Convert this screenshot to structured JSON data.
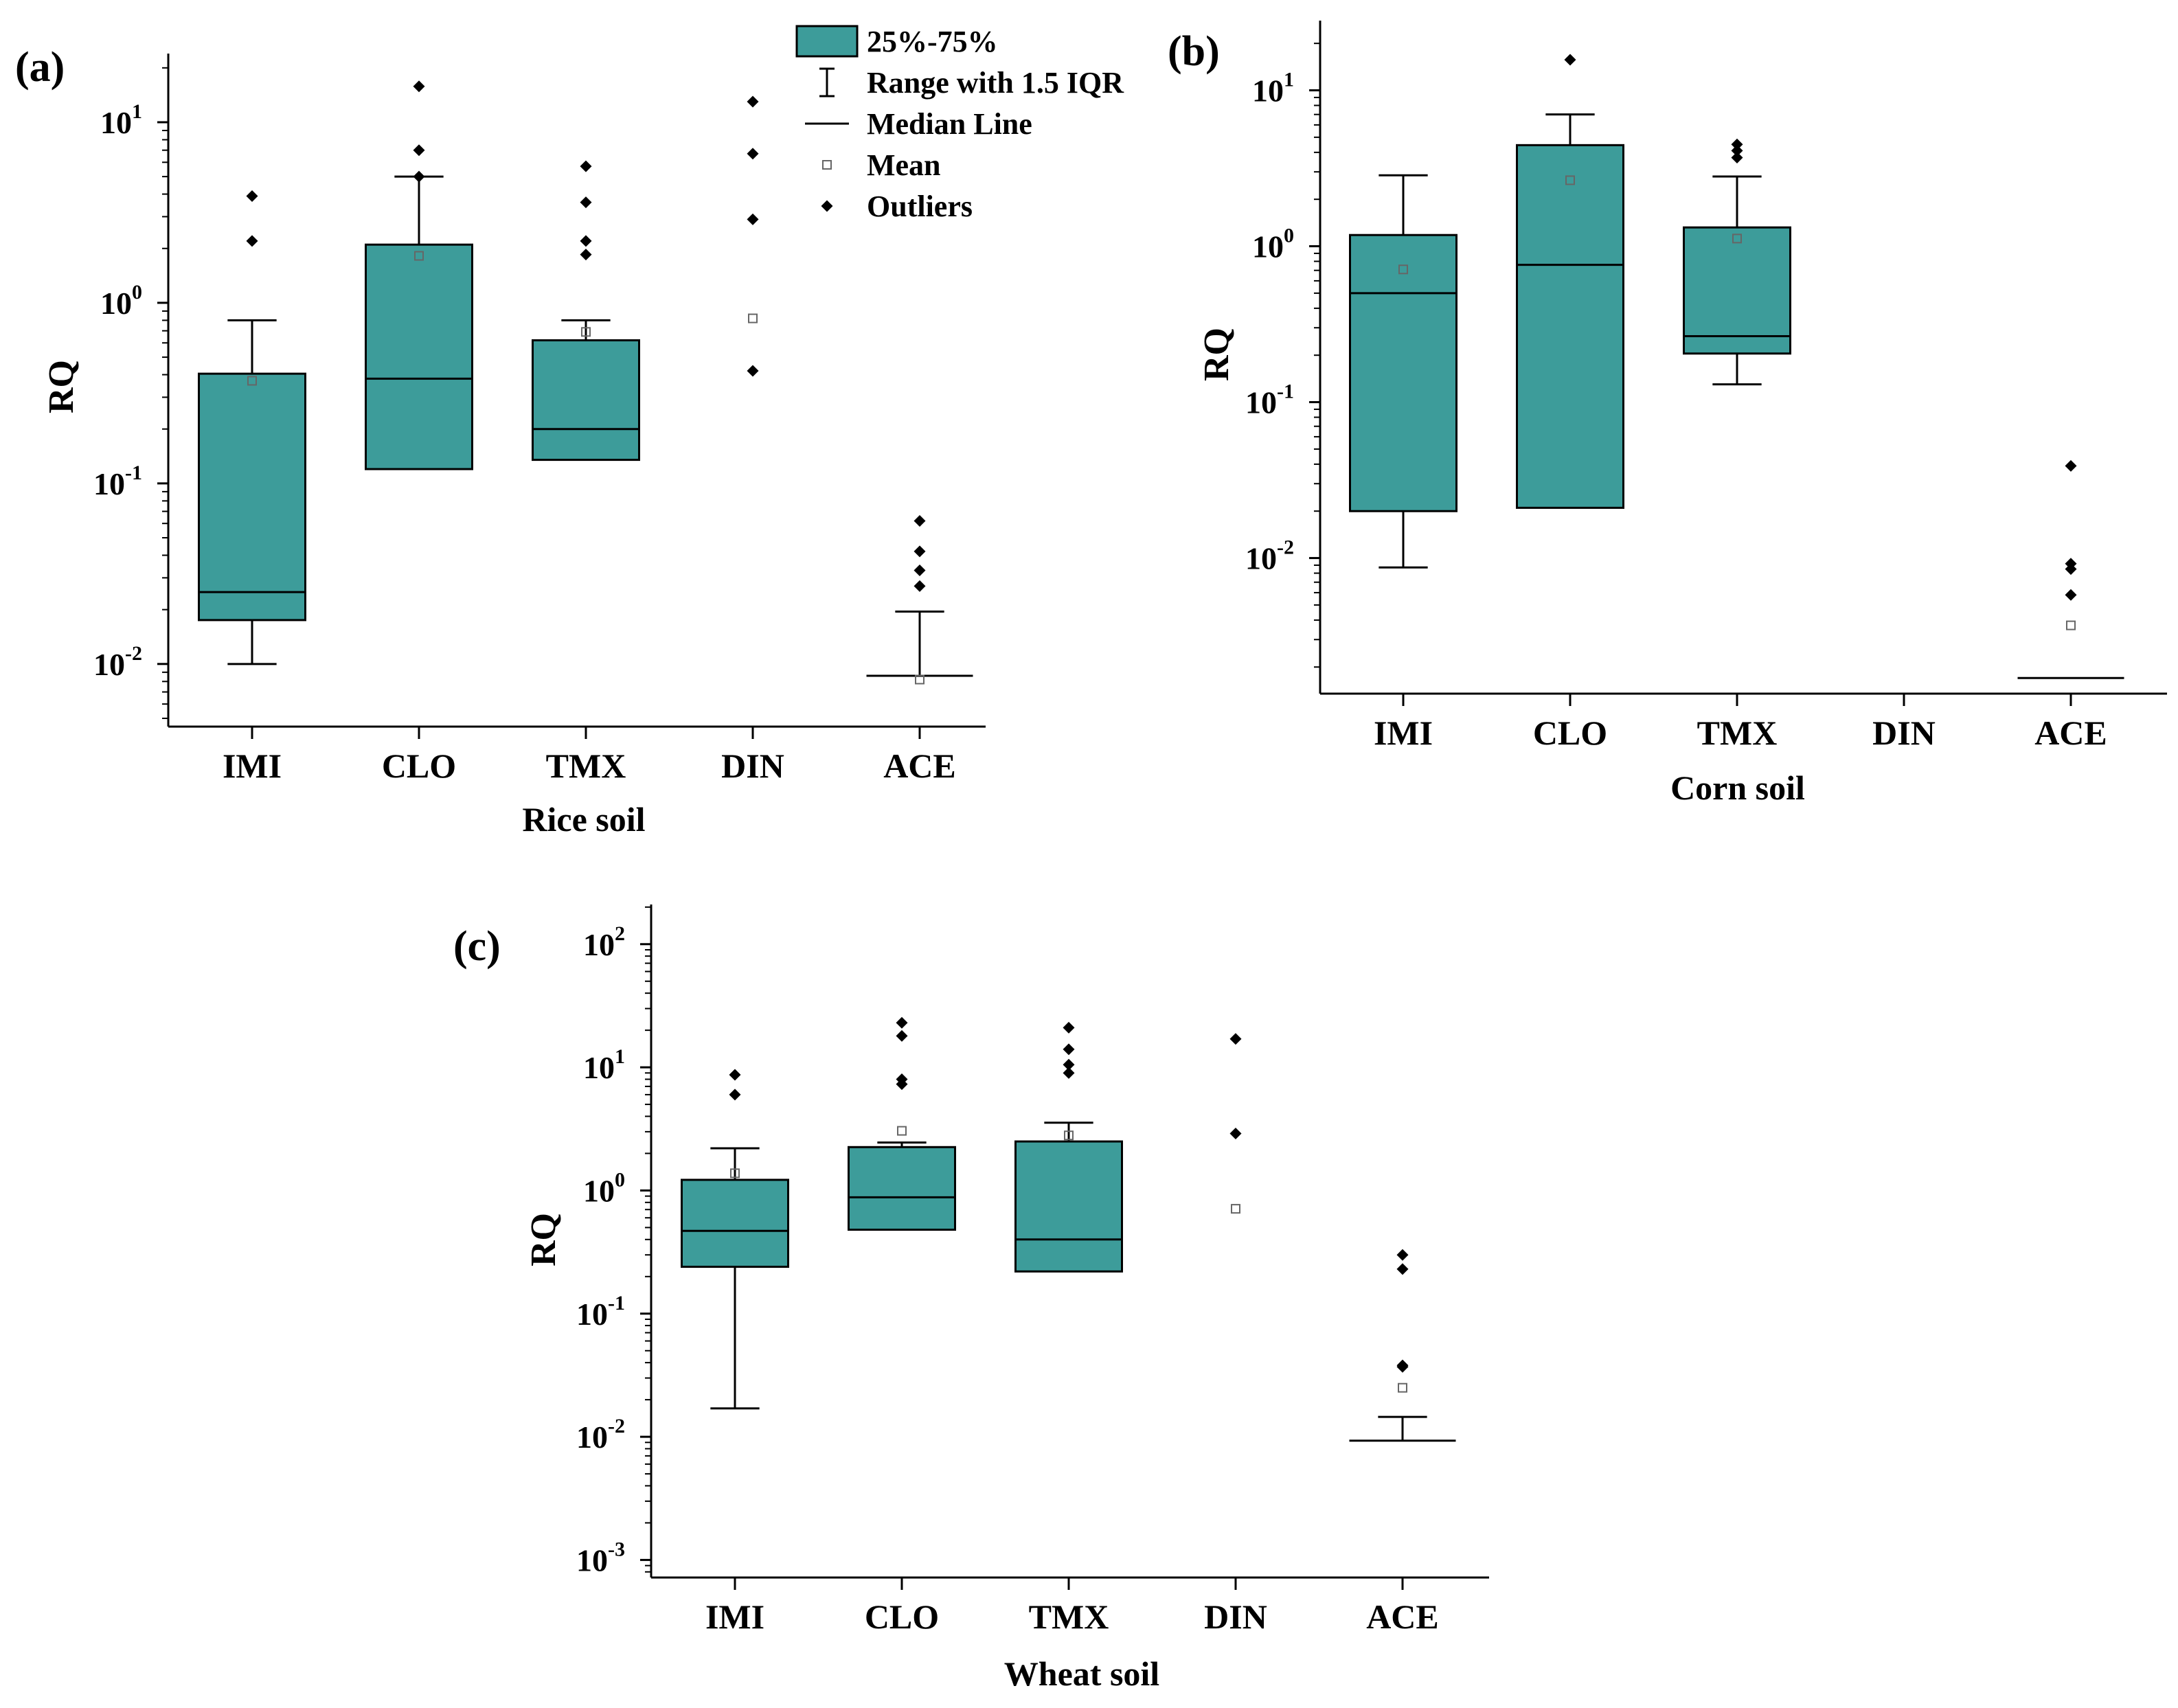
{
  "colors": {
    "box_fill": "#3d9c9a",
    "stroke": "#000000",
    "mean_stroke": "#666666"
  },
  "legend": {
    "placement": "top-right of panel (a)",
    "items": [
      {
        "label": "25%-75%",
        "symbol": "box"
      },
      {
        "label": "Range with 1.5 IQR",
        "symbol": "whisker"
      },
      {
        "label": "Median  Line",
        "symbol": "line"
      },
      {
        "label": "Mean",
        "symbol": "open-square"
      },
      {
        "label": "Outliers",
        "symbol": "diamond"
      }
    ]
  },
  "chart_data": [
    {
      "type": "box",
      "panel": "(a)",
      "xlabel": "Rice soil",
      "ylabel": "RQ",
      "yscale": "log",
      "ylim": [
        0.0045,
        24
      ],
      "yticks": [
        0.01,
        0.1,
        1,
        10
      ],
      "ytick_labels": [
        {
          "base": "10",
          "exp": "-2"
        },
        {
          "base": "10",
          "exp": "-1"
        },
        {
          "base": "10",
          "exp": "0"
        },
        {
          "base": "10",
          "exp": "1"
        }
      ],
      "categories": [
        "IMI",
        "CLO",
        "TMX",
        "DIN",
        "ACE"
      ],
      "boxes": [
        {
          "q1": 0.0175,
          "median": 0.025,
          "q3": 0.405,
          "whisker_low": 0.01,
          "whisker_high": 0.8,
          "mean": 0.37,
          "outliers": [
            2.2,
            3.9
          ]
        },
        {
          "q1": 0.12,
          "median": 0.38,
          "q3": 2.1,
          "whisker_low": null,
          "whisker_high": 5.0,
          "mean": 1.82,
          "outliers": [
            5.0,
            7.0,
            15.8
          ]
        },
        {
          "q1": 0.135,
          "median": 0.2,
          "q3": 0.62,
          "whisker_low": null,
          "whisker_high": 0.8,
          "mean": 0.69,
          "outliers": [
            1.85,
            2.2,
            3.6,
            5.7
          ]
        },
        {
          "q1": null,
          "median": null,
          "q3": null,
          "whisker_low": null,
          "whisker_high": null,
          "mean": 0.82,
          "outliers": [
            0.42,
            2.9,
            6.7,
            13.0
          ]
        },
        {
          "q1": 0.0086,
          "median": 0.0086,
          "q3": 0.0086,
          "whisker_low": null,
          "whisker_high": 0.0195,
          "mean": 0.0082,
          "outliers": [
            0.027,
            0.033,
            0.042,
            0.062
          ]
        }
      ]
    },
    {
      "type": "box",
      "panel": "(b)",
      "xlabel": "Corn soil",
      "ylabel": "RQ",
      "yscale": "log",
      "ylim": [
        0.00135,
        28
      ],
      "yticks": [
        0.01,
        0.1,
        1,
        10
      ],
      "ytick_labels": [
        {
          "base": "10",
          "exp": "-2"
        },
        {
          "base": "10",
          "exp": "-1"
        },
        {
          "base": "10",
          "exp": "0"
        },
        {
          "base": "10",
          "exp": "1"
        }
      ],
      "categories": [
        "IMI",
        "CLO",
        "TMX",
        "DIN",
        "ACE"
      ],
      "boxes": [
        {
          "q1": 0.02,
          "median": 0.5,
          "q3": 1.18,
          "whisker_low": 0.0087,
          "whisker_high": 2.85,
          "mean": 0.71,
          "outliers": []
        },
        {
          "q1": 0.021,
          "median": 0.76,
          "q3": 4.45,
          "whisker_low": null,
          "whisker_high": 7.0,
          "mean": 2.65,
          "outliers": [
            15.7
          ]
        },
        {
          "q1": 0.205,
          "median": 0.265,
          "q3": 1.32,
          "whisker_low": 0.13,
          "whisker_high": 2.8,
          "mean": 1.12,
          "outliers": [
            3.7,
            4.1,
            4.5
          ]
        },
        {
          "q1": null,
          "median": null,
          "q3": null,
          "whisker_low": null,
          "whisker_high": null,
          "mean": null,
          "outliers": []
        },
        {
          "q1": 0.0017,
          "median": 0.0017,
          "q3": 0.0017,
          "whisker_low": null,
          "whisker_high": null,
          "mean": 0.0037,
          "outliers": [
            0.0058,
            0.0085,
            0.0092,
            0.039
          ]
        }
      ]
    },
    {
      "type": "box",
      "panel": "(c)",
      "xlabel": "Wheat soil",
      "ylabel": "RQ",
      "yscale": "log",
      "ylim": [
        0.00072,
        210
      ],
      "yticks": [
        0.001,
        0.01,
        0.1,
        1,
        10,
        100
      ],
      "ytick_labels": [
        {
          "base": "10",
          "exp": "-3"
        },
        {
          "base": "10",
          "exp": "-2"
        },
        {
          "base": "10",
          "exp": "-1"
        },
        {
          "base": "10",
          "exp": "0"
        },
        {
          "base": "10",
          "exp": "1"
        },
        {
          "base": "10",
          "exp": "2"
        }
      ],
      "categories": [
        "IMI",
        "CLO",
        "TMX",
        "DIN",
        "ACE"
      ],
      "boxes": [
        {
          "q1": 0.24,
          "median": 0.47,
          "q3": 1.22,
          "whisker_low": 0.017,
          "whisker_high": 2.2,
          "mean": 1.38,
          "outliers": [
            6.0,
            8.7
          ]
        },
        {
          "q1": 0.48,
          "median": 0.88,
          "q3": 2.25,
          "whisker_low": null,
          "whisker_high": 2.45,
          "mean": 3.05,
          "outliers": [
            7.3,
            8.0,
            18.0,
            23.0
          ]
        },
        {
          "q1": 0.22,
          "median": 0.4,
          "q3": 2.5,
          "whisker_low": null,
          "whisker_high": 3.55,
          "mean": 2.8,
          "outliers": [
            9.0,
            10.5,
            14.0,
            21.0
          ]
        },
        {
          "q1": null,
          "median": null,
          "q3": null,
          "whisker_low": null,
          "whisker_high": null,
          "mean": 0.71,
          "outliers": [
            2.9,
            17.0
          ]
        },
        {
          "q1": 0.0093,
          "median": 0.0093,
          "q3": 0.0093,
          "whisker_low": null,
          "whisker_high": 0.0145,
          "mean": 0.025,
          "outliers": [
            0.037,
            0.038,
            0.23,
            0.3
          ]
        }
      ]
    }
  ]
}
